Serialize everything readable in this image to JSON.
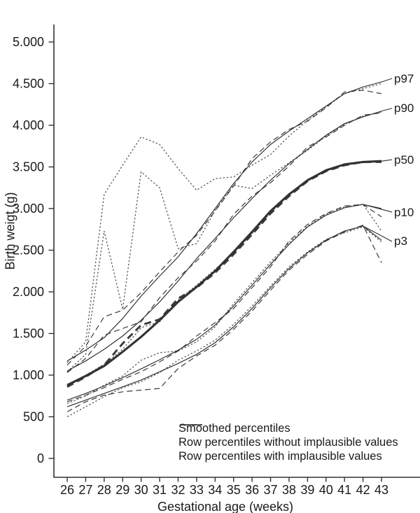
{
  "colors": {
    "background": "#ffffff",
    "text": "#1a1a1a",
    "axis": "#333333",
    "solid_line": "#333333",
    "dashed_line": "#3a3a3a",
    "dotted_line": "#5a5a5a"
  },
  "figure": {
    "y_axis": {
      "tick_values": [
        0,
        500,
        1000,
        1500,
        2000,
        2500,
        3000,
        3500,
        4000,
        4500,
        5000
      ],
      "tick_labels": [
        "0",
        "500",
        "1.000",
        "1.500",
        "2.000",
        "2.500",
        "3.000",
        "3.500",
        "4.000",
        "4.500",
        "5.000"
      ]
    },
    "x_axis": {
      "tick_labels": [
        "26",
        "27",
        "28",
        "29",
        "30",
        "31",
        "32",
        "33",
        "34",
        "35",
        "36",
        "37",
        "38",
        "39",
        "40",
        "41",
        "42",
        "43"
      ]
    },
    "legend": [
      {
        "style": "smoothed",
        "label": "Smoothed percentiles"
      },
      {
        "style": "without",
        "label": "Row percentiles without implausible values"
      },
      {
        "style": "with",
        "label": "Row percentiles with implausible values"
      }
    ],
    "curve_labels": [
      "p97",
      "p90",
      "p50",
      "p10",
      "p3"
    ]
  },
  "chart_data": {
    "type": "line",
    "title": "",
    "xlabel": "Gestational age (weeks)",
    "ylabel": "Birth weigt (g)",
    "x": [
      26,
      27,
      28,
      29,
      30,
      31,
      32,
      33,
      34,
      35,
      36,
      37,
      38,
      39,
      40,
      41,
      42,
      43
    ],
    "xlim": [
      26,
      43
    ],
    "ylim": [
      0,
      5000
    ],
    "grid": false,
    "legend_position": "bottom-inside",
    "series": [
      {
        "name": "p97 smoothed",
        "percentile": "p97",
        "style": "smoothed",
        "values": [
          1170,
          1300,
          1450,
          1680,
          1950,
          2190,
          2420,
          2700,
          3000,
          3300,
          3560,
          3770,
          3930,
          4080,
          4230,
          4380,
          4460,
          4520
        ]
      },
      {
        "name": "p97 row without implausible values",
        "percentile": "p97",
        "style": "without",
        "values": [
          1120,
          1350,
          1700,
          1780,
          1990,
          2240,
          2480,
          2680,
          2970,
          3270,
          3600,
          3800,
          3950,
          4050,
          4210,
          4400,
          4420,
          4380
        ]
      },
      {
        "name": "p97 row with implausible values",
        "percentile": "p97",
        "style": "with",
        "values": [
          1150,
          1400,
          3170,
          3520,
          3860,
          3770,
          3480,
          3220,
          3360,
          3380,
          3520,
          3650,
          3870,
          4060,
          4220,
          4380,
          4440,
          4500
        ]
      },
      {
        "name": "p90 smoothed",
        "percentile": "p90",
        "style": "smoothed",
        "values": [
          1050,
          1170,
          1310,
          1470,
          1660,
          1880,
          2130,
          2400,
          2640,
          2890,
          3120,
          3340,
          3540,
          3710,
          3880,
          4020,
          4100,
          4170
        ]
      },
      {
        "name": "p90 row without implausible values",
        "percentile": "p90",
        "style": "without",
        "values": [
          1030,
          1200,
          1480,
          1560,
          1640,
          1930,
          2170,
          2370,
          2610,
          2930,
          3150,
          3310,
          3510,
          3740,
          3860,
          4000,
          4120,
          4150
        ]
      },
      {
        "name": "p90 row with implausible values",
        "percentile": "p90",
        "style": "with",
        "values": [
          1040,
          1250,
          2730,
          1790,
          3440,
          3250,
          2520,
          2580,
          2980,
          3280,
          3240,
          3400,
          3550,
          3700,
          3870,
          4010,
          4110,
          4160
        ]
      },
      {
        "name": "p50 smoothed",
        "percentile": "p50",
        "style": "smoothed",
        "values": [
          880,
          990,
          1110,
          1280,
          1460,
          1660,
          1880,
          2060,
          2250,
          2480,
          2720,
          2970,
          3170,
          3340,
          3460,
          3530,
          3560,
          3570
        ]
      },
      {
        "name": "p50 row without implausible values",
        "percentile": "p50",
        "style": "without",
        "values": [
          860,
          980,
          1120,
          1380,
          1600,
          1670,
          1920,
          2050,
          2230,
          2450,
          2690,
          2940,
          3150,
          3330,
          3450,
          3520,
          3560,
          3560
        ]
      },
      {
        "name": "p50 row with implausible values",
        "percentile": "p50",
        "style": "with",
        "values": [
          870,
          1000,
          1130,
          1310,
          1570,
          1640,
          1900,
          2080,
          2270,
          2460,
          2700,
          2950,
          3160,
          3330,
          3460,
          3530,
          3550,
          3570
        ]
      },
      {
        "name": "p10 smoothed",
        "percentile": "p10",
        "style": "smoothed",
        "values": [
          700,
          780,
          870,
          970,
          1075,
          1185,
          1300,
          1430,
          1600,
          1830,
          2080,
          2330,
          2570,
          2780,
          2920,
          3010,
          3050,
          3000
        ]
      },
      {
        "name": "p10 row without implausible values",
        "percentile": "p10",
        "style": "without",
        "values": [
          680,
          760,
          850,
          950,
          1040,
          1160,
          1290,
          1470,
          1630,
          1800,
          2050,
          2300,
          2610,
          2810,
          2940,
          3030,
          3050,
          2900
        ]
      },
      {
        "name": "p10 row with implausible values",
        "percentile": "p10",
        "style": "with",
        "values": [
          660,
          750,
          880,
          990,
          1180,
          1270,
          1290,
          1400,
          1580,
          1860,
          2110,
          2360,
          2590,
          2790,
          2930,
          3020,
          3050,
          2730
        ]
      },
      {
        "name": "p3 smoothed",
        "percentile": "p3",
        "style": "smoothed",
        "values": [
          620,
          700,
          780,
          860,
          940,
          1040,
          1140,
          1250,
          1390,
          1580,
          1800,
          2050,
          2280,
          2470,
          2620,
          2730,
          2790,
          2620
        ]
      },
      {
        "name": "p3 row without implausible values",
        "percentile": "p3",
        "style": "without",
        "values": [
          560,
          680,
          760,
          800,
          820,
          840,
          1080,
          1230,
          1360,
          1550,
          1770,
          2020,
          2260,
          2450,
          2610,
          2720,
          2800,
          2350
        ]
      },
      {
        "name": "p3 row with implausible values",
        "percentile": "p3",
        "style": "with",
        "values": [
          500,
          620,
          740,
          850,
          920,
          1030,
          1180,
          1290,
          1420,
          1610,
          1830,
          2070,
          2300,
          2480,
          2630,
          2710,
          2780,
          2600
        ]
      }
    ]
  }
}
